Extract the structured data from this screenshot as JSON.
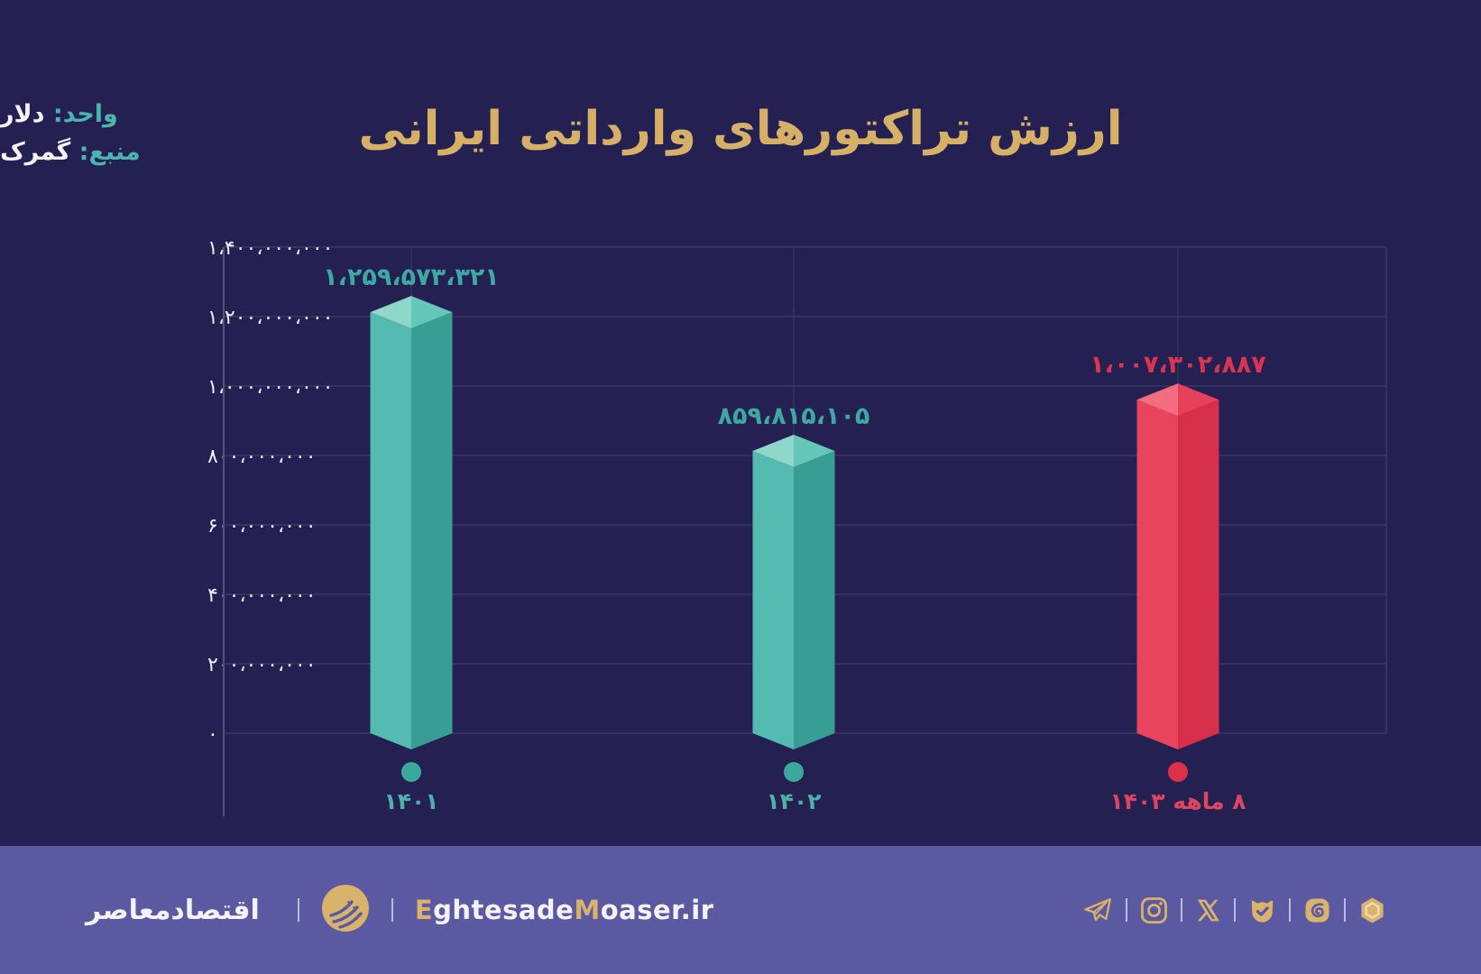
{
  "title": "ارزش تراکتورهای وارداتی ایرانی",
  "meta": {
    "unit_label": "واحد:",
    "unit_value": "دلار",
    "source_label": "منبع:",
    "source_value": "گمرک"
  },
  "chart_data": {
    "type": "bar",
    "title": "ارزش تراکتورهای وارداتی ایرانی",
    "unit": "دلار",
    "source": "گمرک",
    "categories": [
      "۱۴۰۱",
      "۱۴۰۲",
      "۸ ماهه ۱۴۰۳"
    ],
    "values": [
      1259573321,
      859815105,
      1007302887
    ],
    "value_labels": [
      "۱،۲۵۹،۵۷۳،۳۲۱",
      "۸۵۹،۸۱۵،۱۰۵",
      "۱،۰۰۷،۳۰۲،۸۸۷"
    ],
    "series_colors": [
      "teal",
      "teal",
      "red"
    ],
    "ylim": [
      0,
      1400000000
    ],
    "y_tick_step": 200000000,
    "y_tick_labels_top_to_bottom": [
      "۱،۴۰۰،۰۰۰،۰۰۰",
      "۱،۲۰۰،۰۰۰،۰۰۰",
      "۱،۰۰۰،۰۰۰،۰۰۰",
      "۸۰۰،۰۰۰،۰۰۰",
      "۶۰۰،۰۰۰،۰۰۰",
      "۴۰۰،۰۰۰،۰۰۰",
      "۲۰۰،۰۰۰،۰۰۰",
      "۰"
    ],
    "grid": true,
    "legend": false,
    "bar_style": "3d-hexagonal-column"
  },
  "palette": {
    "background": "#242051",
    "footer_bg": "#5a59a1",
    "title_gold": "#d7b067",
    "teal_text": "#4ab4ae",
    "white": "#f4f3fa",
    "grid": "#47436f",
    "grid_v": "#3e3a66",
    "axis_line": "#55517e",
    "axis_text": "#f0eff8",
    "icon_gold": "#d9b26b",
    "teal": {
      "faceL": "#55bbb0",
      "faceR": "#389e93",
      "topL": "#8fd6cb",
      "topR": "#65c6ba",
      "dot": "#3aa89d",
      "label": "#3fa8a2",
      "cat": "#4db2ac"
    },
    "red": {
      "faceL": "#e9445d",
      "faceR": "#d52f49",
      "topL": "#f36c80",
      "topR": "#e6405a",
      "dot": "#dd3049",
      "label": "#d93550",
      "cat": "#dc4660"
    }
  },
  "footer": {
    "brand": "اقتصادمعاصر",
    "website_parts": [
      {
        "text": "E",
        "gold": true
      },
      {
        "text": "ghtesade",
        "gold": false
      },
      {
        "text": "M",
        "gold": true
      },
      {
        "text": "oaser.ir",
        "gold": false
      }
    ],
    "social_icons": [
      "telegram-icon",
      "instagram-icon",
      "x-icon",
      "bale-icon",
      "eitaa-icon",
      "rubika-icon"
    ]
  }
}
